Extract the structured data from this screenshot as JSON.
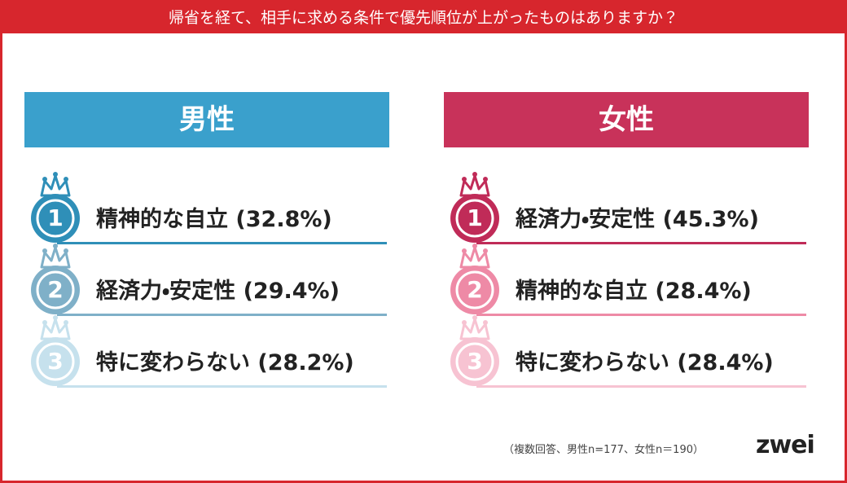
{
  "header": {
    "title": "帰省を経て、相手に求める条件で優先順位が上がったものはありますか？",
    "color": "#d7262d"
  },
  "panels": [
    {
      "heading": "男性",
      "color": "#3aa0cc",
      "items": [
        {
          "rank": "1",
          "text": "精神的な自立 (32.8%)",
          "color": "#2f8fb8"
        },
        {
          "rank": "2",
          "text": "経済力・安定性 (29.4%)",
          "color": "#7fb0c8"
        },
        {
          "rank": "3",
          "text": "特に変わらない (28.2%)",
          "color": "#c6e1ed"
        }
      ]
    },
    {
      "heading": "女性",
      "color": "#c8325a",
      "items": [
        {
          "rank": "1",
          "text": "経済力・安定性 (45.3%)",
          "color": "#c02b58"
        },
        {
          "rank": "2",
          "text": "精神的な自立 (28.4%)",
          "color": "#ee8aa6"
        },
        {
          "rank": "3",
          "text": "特に変わらない (28.4%)",
          "color": "#f7c3d2"
        }
      ]
    }
  ],
  "footnote": "（複数回答、男性n=177、女性n＝190）",
  "logo": "zwei"
}
